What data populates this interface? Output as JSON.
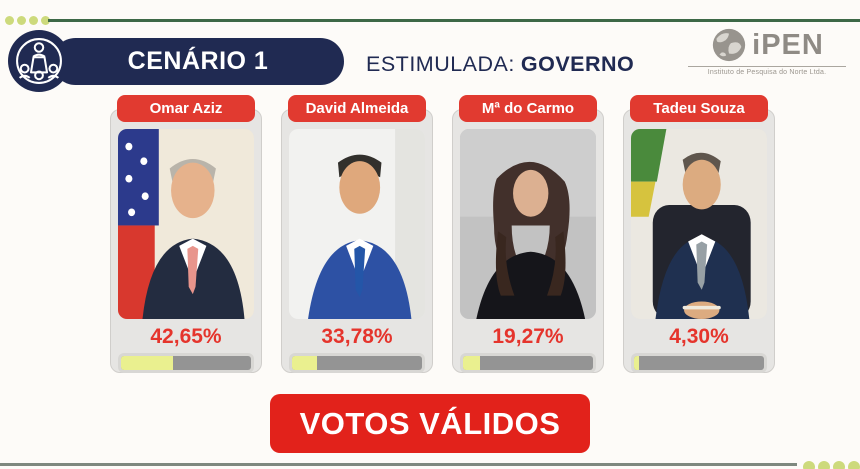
{
  "header": {
    "scenario_label": "CENÁRIO 1",
    "stimulated_prefix": "ESTIMULADA:",
    "stimulated_value": "GOVERNO"
  },
  "logo": {
    "name": "iPEN",
    "subtitle": "Instituto de Pesquisa do Norte Ltda."
  },
  "candidates": [
    {
      "name": "Omar Aziz",
      "percent": "42,65%",
      "bar_fill_pct": 40
    },
    {
      "name": "David Almeida",
      "percent": "33,78%",
      "bar_fill_pct": 19
    },
    {
      "name": "Mª do Carmo",
      "percent": "19,27%",
      "bar_fill_pct": 13
    },
    {
      "name": "Tadeu Souza",
      "percent": "4,30%",
      "bar_fill_pct": 4
    }
  ],
  "footer": {
    "button_label": "VOTOS VÁLIDOS"
  },
  "colors": {
    "navy": "#202a52",
    "red_badge": "#e13a30",
    "red_percent": "#e5342c",
    "red_button": "#e2221b",
    "bar_fill_yellow": "#eaf08f",
    "bar_track_gray": "#949494",
    "card_bg": "#e6e5e3",
    "green_line": "#3d6847",
    "dot_green": "#cdda7c",
    "logo_gray": "#8f8b85"
  },
  "chart_data": {
    "type": "bar",
    "title": "CENÁRIO 1 — ESTIMULADA: GOVERNO",
    "categories": [
      "Omar Aziz",
      "David Almeida",
      "Mª do Carmo",
      "Tadeu Souza"
    ],
    "values": [
      42.65,
      33.78,
      19.27,
      4.3
    ],
    "unit": "%",
    "annotation": "VOTOS VÁLIDOS",
    "legend": false
  }
}
